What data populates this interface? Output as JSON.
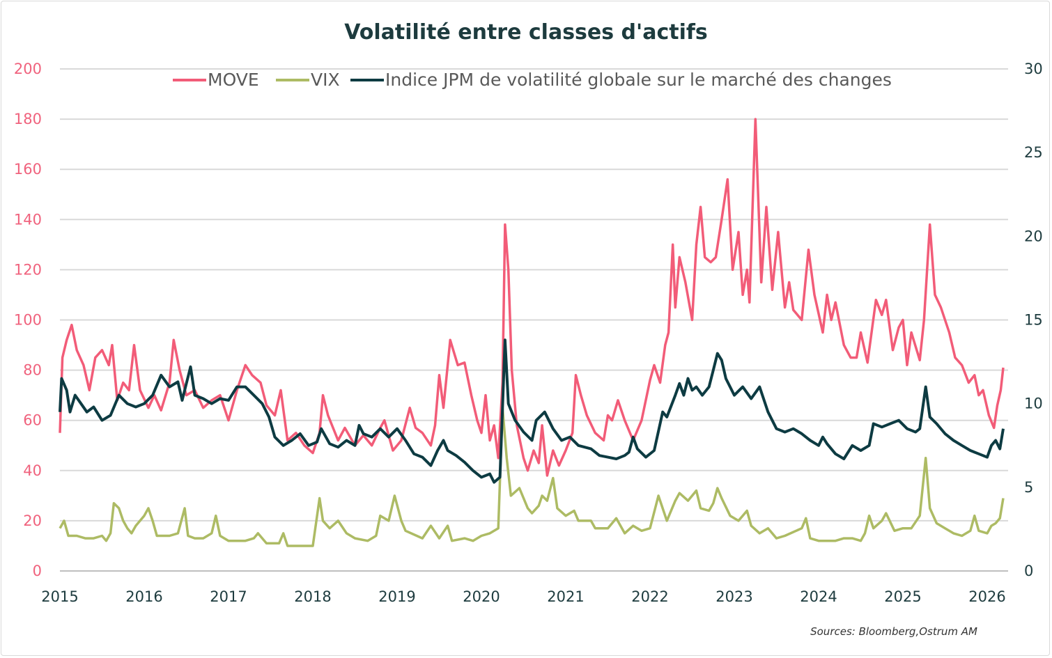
{
  "chart_data": {
    "type": "line",
    "title": "Volatilité entre classes d'actifs",
    "source": "Sources: Bloomberg,Ostrum AM",
    "x_ticks": [
      "2015",
      "2016",
      "2017",
      "2018",
      "2019",
      "2020",
      "2021",
      "2022",
      "2023",
      "2024",
      "2025",
      "2026"
    ],
    "y_left": {
      "ylim": [
        0,
        200
      ],
      "ticks": [
        "0",
        "20",
        "40",
        "60",
        "80",
        "100",
        "120",
        "140",
        "160",
        "180",
        "200"
      ],
      "color": "#f0627d"
    },
    "y_right": {
      "ylim": [
        0,
        30
      ],
      "ticks": [
        "0",
        "5",
        "10",
        "15",
        "20",
        "25",
        "30"
      ],
      "color": "#1d3b3e"
    },
    "grid": true,
    "legend_position": "top",
    "series": [
      {
        "name": "MOVE",
        "axis": "left",
        "color": "#f25c78",
        "x": [
          2015.0,
          2015.03,
          2015.08,
          2015.14,
          2015.2,
          2015.28,
          2015.35,
          2015.42,
          2015.5,
          2015.58,
          2015.62,
          2015.68,
          2015.75,
          2015.82,
          2015.88,
          2015.95,
          2016.05,
          2016.12,
          2016.2,
          2016.3,
          2016.35,
          2016.42,
          2016.5,
          2016.6,
          2016.7,
          2016.8,
          2016.9,
          2017.0,
          2017.1,
          2017.2,
          2017.28,
          2017.38,
          2017.45,
          2017.55,
          2017.62,
          2017.7,
          2017.8,
          2017.9,
          2018.0,
          2018.08,
          2018.12,
          2018.18,
          2018.3,
          2018.38,
          2018.5,
          2018.6,
          2018.7,
          2018.8,
          2018.85,
          2018.95,
          2019.05,
          2019.15,
          2019.22,
          2019.3,
          2019.4,
          2019.45,
          2019.5,
          2019.55,
          2019.63,
          2019.72,
          2019.8,
          2019.88,
          2019.95,
          2020.0,
          2020.05,
          2020.1,
          2020.15,
          2020.2,
          2020.25,
          2020.28,
          2020.32,
          2020.36,
          2020.42,
          2020.5,
          2020.55,
          2020.62,
          2020.68,
          2020.72,
          2020.78,
          2020.85,
          2020.92,
          2021.0,
          2021.08,
          2021.12,
          2021.18,
          2021.25,
          2021.35,
          2021.45,
          2021.5,
          2021.55,
          2021.62,
          2021.7,
          2021.8,
          2021.9,
          2022.0,
          2022.05,
          2022.12,
          2022.18,
          2022.22,
          2022.27,
          2022.3,
          2022.35,
          2022.42,
          2022.5,
          2022.55,
          2022.6,
          2022.65,
          2022.72,
          2022.78,
          2022.85,
          2022.92,
          2022.98,
          2023.05,
          2023.1,
          2023.15,
          2023.18,
          2023.25,
          2023.32,
          2023.38,
          2023.45,
          2023.52,
          2023.6,
          2023.65,
          2023.7,
          2023.8,
          2023.88,
          2023.95,
          2024.05,
          2024.1,
          2024.15,
          2024.2,
          2024.3,
          2024.38,
          2024.45,
          2024.5,
          2024.58,
          2024.68,
          2024.75,
          2024.8,
          2024.88,
          2024.95,
          2025.0,
          2025.05,
          2025.1,
          2025.2,
          2025.25,
          2025.32,
          2025.38,
          2025.45,
          2025.55,
          2025.62,
          2025.7,
          2025.78,
          2025.85,
          2025.9,
          2025.95,
          2026.02,
          2026.08,
          2026.12,
          2026.16,
          2026.19
        ],
        "y": [
          55,
          85,
          92,
          98,
          88,
          82,
          72,
          85,
          88,
          82,
          90,
          68,
          75,
          72,
          90,
          72,
          65,
          70,
          64,
          75,
          92,
          80,
          70,
          72,
          65,
          68,
          70,
          60,
          72,
          82,
          78,
          75,
          66,
          62,
          72,
          52,
          55,
          50,
          47,
          55,
          70,
          62,
          52,
          57,
          50,
          54,
          50,
          57,
          60,
          48,
          52,
          65,
          57,
          55,
          50,
          58,
          78,
          65,
          92,
          82,
          83,
          70,
          60,
          55,
          70,
          52,
          58,
          45,
          75,
          138,
          120,
          80,
          58,
          45,
          40,
          48,
          43,
          58,
          38,
          48,
          42,
          48,
          55,
          78,
          70,
          62,
          55,
          52,
          62,
          60,
          68,
          60,
          52,
          60,
          76,
          82,
          75,
          90,
          95,
          130,
          105,
          125,
          115,
          100,
          130,
          145,
          125,
          123,
          125,
          140,
          156,
          120,
          135,
          110,
          120,
          107,
          180,
          115,
          145,
          112,
          135,
          105,
          115,
          104,
          100,
          128,
          110,
          95,
          110,
          100,
          107,
          90,
          85,
          85,
          95,
          83,
          108,
          102,
          108,
          88,
          97,
          100,
          82,
          95,
          84,
          100,
          138,
          110,
          105,
          95,
          85,
          82,
          75,
          78,
          70,
          72,
          62,
          57,
          66,
          72,
          81
        ]
      },
      {
        "name": "VIX",
        "axis": "left",
        "color": "#adbb64",
        "x": [
          2015.0,
          2015.05,
          2015.1,
          2015.2,
          2015.3,
          2015.4,
          2015.5,
          2015.55,
          2015.6,
          2015.64,
          2015.7,
          2015.75,
          2015.8,
          2015.85,
          2015.9,
          2016.0,
          2016.05,
          2016.1,
          2016.15,
          2016.3,
          2016.4,
          2016.48,
          2016.52,
          2016.6,
          2016.7,
          2016.8,
          2016.85,
          2016.9,
          2017.0,
          2017.2,
          2017.3,
          2017.35,
          2017.45,
          2017.6,
          2017.65,
          2017.7,
          2017.9,
          2018.0,
          2018.08,
          2018.12,
          2018.2,
          2018.3,
          2018.4,
          2018.5,
          2018.65,
          2018.75,
          2018.8,
          2018.9,
          2018.97,
          2019.05,
          2019.1,
          2019.3,
          2019.4,
          2019.5,
          2019.6,
          2019.65,
          2019.8,
          2019.9,
          2020.0,
          2020.1,
          2020.2,
          2020.25,
          2020.3,
          2020.35,
          2020.45,
          2020.55,
          2020.6,
          2020.68,
          2020.72,
          2020.78,
          2020.85,
          2020.9,
          2021.0,
          2021.1,
          2021.15,
          2021.3,
          2021.35,
          2021.5,
          2021.6,
          2021.7,
          2021.8,
          2021.9,
          2022.0,
          2022.1,
          2022.2,
          2022.3,
          2022.35,
          2022.45,
          2022.55,
          2022.6,
          2022.7,
          2022.75,
          2022.8,
          2022.85,
          2022.95,
          2023.05,
          2023.15,
          2023.2,
          2023.3,
          2023.4,
          2023.5,
          2023.6,
          2023.8,
          2023.85,
          2023.9,
          2024.0,
          2024.2,
          2024.3,
          2024.4,
          2024.5,
          2024.55,
          2024.6,
          2024.65,
          2024.75,
          2024.8,
          2024.9,
          2025.0,
          2025.1,
          2025.2,
          2025.27,
          2025.32,
          2025.4,
          2025.5,
          2025.6,
          2025.7,
          2025.8,
          2025.85,
          2025.9,
          2026.0,
          2026.05,
          2026.1,
          2026.15,
          2026.19
        ],
        "y": [
          17,
          20,
          14,
          14,
          13,
          13,
          14,
          12,
          15,
          27,
          25,
          20,
          17,
          15,
          18,
          22,
          25,
          20,
          14,
          14,
          15,
          25,
          14,
          13,
          13,
          15,
          22,
          14,
          12,
          12,
          13,
          15,
          11,
          11,
          15,
          10,
          10,
          10,
          29,
          20,
          17,
          20,
          15,
          13,
          12,
          14,
          22,
          20,
          30,
          20,
          16,
          13,
          18,
          13,
          18,
          12,
          13,
          12,
          14,
          15,
          17,
          65,
          45,
          30,
          33,
          25,
          23,
          26,
          30,
          28,
          37,
          25,
          22,
          24,
          20,
          20,
          17,
          17,
          21,
          15,
          18,
          16,
          17,
          30,
          20,
          28,
          31,
          28,
          32,
          25,
          24,
          27,
          33,
          29,
          22,
          20,
          24,
          18,
          15,
          17,
          13,
          14,
          17,
          21,
          13,
          12,
          12,
          13,
          13,
          12,
          15,
          22,
          17,
          20,
          23,
          16,
          17,
          17,
          22,
          45,
          25,
          19,
          17,
          15,
          14,
          16,
          22,
          16,
          15,
          18,
          19,
          21,
          29
        ]
      },
      {
        "name": "Indice JPM de volatilité globale sur le marché des changes",
        "axis": "right",
        "color": "#0d3b42",
        "x": [
          2015.0,
          2015.02,
          2015.08,
          2015.12,
          2015.18,
          2015.25,
          2015.32,
          2015.4,
          2015.5,
          2015.6,
          2015.7,
          2015.8,
          2015.9,
          2016.0,
          2016.1,
          2016.2,
          2016.3,
          2016.4,
          2016.45,
          2016.55,
          2016.6,
          2016.7,
          2016.8,
          2016.9,
          2017.0,
          2017.1,
          2017.2,
          2017.3,
          2017.4,
          2017.48,
          2017.55,
          2017.65,
          2017.75,
          2017.85,
          2017.95,
          2018.05,
          2018.1,
          2018.2,
          2018.3,
          2018.4,
          2018.5,
          2018.55,
          2018.6,
          2018.7,
          2018.8,
          2018.9,
          2019.0,
          2019.1,
          2019.2,
          2019.3,
          2019.4,
          2019.48,
          2019.55,
          2019.6,
          2019.7,
          2019.8,
          2019.9,
          2020.0,
          2020.1,
          2020.15,
          2020.22,
          2020.28,
          2020.32,
          2020.4,
          2020.5,
          2020.6,
          2020.65,
          2020.75,
          2020.85,
          2020.95,
          2021.05,
          2021.15,
          2021.3,
          2021.4,
          2021.5,
          2021.6,
          2021.7,
          2021.75,
          2021.8,
          2021.85,
          2021.95,
          2022.05,
          2022.15,
          2022.2,
          2022.3,
          2022.35,
          2022.4,
          2022.45,
          2022.5,
          2022.55,
          2022.62,
          2022.7,
          2022.75,
          2022.8,
          2022.85,
          2022.9,
          2023.0,
          2023.1,
          2023.2,
          2023.3,
          2023.4,
          2023.5,
          2023.6,
          2023.7,
          2023.8,
          2023.9,
          2024.0,
          2024.05,
          2024.1,
          2024.2,
          2024.3,
          2024.4,
          2024.5,
          2024.6,
          2024.65,
          2024.75,
          2024.85,
          2024.95,
          2025.05,
          2025.15,
          2025.2,
          2025.27,
          2025.32,
          2025.4,
          2025.5,
          2025.6,
          2025.7,
          2025.8,
          2025.9,
          2026.0,
          2026.05,
          2026.1,
          2026.15,
          2026.19
        ],
        "y": [
          9.5,
          11.5,
          10.8,
          9.5,
          10.5,
          10,
          9.5,
          9.8,
          9,
          9.3,
          10.5,
          10,
          9.8,
          10,
          10.5,
          11.7,
          11,
          11.3,
          10.2,
          12.2,
          10.5,
          10.3,
          10,
          10.3,
          10.2,
          11,
          11,
          10.5,
          10,
          9.2,
          8,
          7.5,
          7.8,
          8.2,
          7.5,
          7.7,
          8.5,
          7.6,
          7.4,
          7.8,
          7.5,
          8.7,
          8.2,
          8,
          8.5,
          8,
          8.5,
          7.8,
          7,
          6.8,
          6.3,
          7.2,
          7.8,
          7.2,
          6.9,
          6.5,
          6,
          5.6,
          5.8,
          5.3,
          5.6,
          13.8,
          10,
          9,
          8.3,
          7.8,
          9,
          9.5,
          8.5,
          7.8,
          8,
          7.5,
          7.3,
          6.9,
          6.8,
          6.7,
          6.9,
          7.1,
          8,
          7.3,
          6.8,
          7.2,
          9.5,
          9.2,
          10.5,
          11.2,
          10.5,
          11.5,
          10.8,
          11,
          10.5,
          11,
          12,
          13,
          12.6,
          11.5,
          10.5,
          11,
          10.3,
          11,
          9.5,
          8.5,
          8.3,
          8.5,
          8.2,
          7.8,
          7.5,
          8,
          7.6,
          7,
          6.7,
          7.5,
          7.2,
          7.5,
          8.8,
          8.6,
          8.8,
          9,
          8.5,
          8.3,
          8.5,
          11,
          9.2,
          8.8,
          8.2,
          7.8,
          7.5,
          7.2,
          7,
          6.8,
          7.5,
          7.8,
          7.3,
          8.5
        ]
      }
    ]
  }
}
